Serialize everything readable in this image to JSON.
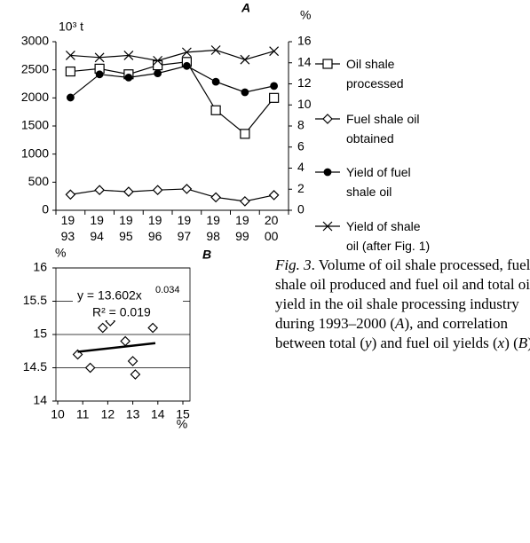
{
  "chart_data": [
    {
      "type": "line",
      "title": "A",
      "y_label": "10³ t",
      "y2_label": "%",
      "categories": [
        "1993",
        "1994",
        "1995",
        "1996",
        "1997",
        "1998",
        "1999",
        "2000"
      ],
      "series": [
        {
          "name": "Oil shale processed",
          "color": "#000000",
          "marker": "square",
          "axis": "y",
          "values": [
            2470,
            2520,
            2420,
            2580,
            2640,
            1780,
            1360,
            2000
          ]
        },
        {
          "name": "Fuel shale oil obtained",
          "color": "#000000",
          "marker": "diamond",
          "axis": "y",
          "values": [
            280,
            360,
            330,
            360,
            380,
            230,
            160,
            270
          ]
        },
        {
          "name": "Yield of fuel shale oil",
          "color": "#000000",
          "marker": "circle",
          "axis": "y2",
          "values": [
            10.7,
            12.9,
            12.6,
            13.0,
            13.7,
            12.2,
            11.2,
            11.8
          ]
        },
        {
          "name": "Yield of shale oil (after Fig. 1)",
          "color": "#000000",
          "marker": "x",
          "axis": "y2",
          "values": [
            14.7,
            14.5,
            14.7,
            14.2,
            15.0,
            15.2,
            14.3,
            15.1
          ]
        }
      ],
      "ylim": [
        0,
        3000
      ],
      "yticks": [
        0,
        500,
        1000,
        1500,
        2000,
        2500,
        3000
      ],
      "y2lim": [
        0,
        16
      ],
      "y2ticks": [
        0,
        2,
        4,
        6,
        8,
        10,
        12,
        14,
        16
      ],
      "grid": false
    },
    {
      "type": "scatter",
      "title": "B",
      "y_label": "%",
      "x_label": "%",
      "x": [
        10.8,
        11.3,
        11.8,
        12.1,
        12.7,
        13.0,
        13.1,
        13.8
      ],
      "y": [
        14.7,
        14.5,
        15.1,
        15.2,
        14.9,
        14.6,
        14.4,
        15.1
      ],
      "color": "#000000",
      "trendline": {
        "x": [
          10.8,
          13.9
        ],
        "y": [
          14.74,
          14.87
        ]
      },
      "equation": "y = 13.602x",
      "exponent": "0.034",
      "r2": "R² = 0.019",
      "xlim": [
        10,
        15
      ],
      "xticks": [
        10,
        11,
        12,
        13,
        14,
        15
      ],
      "ylim": [
        14,
        16
      ],
      "yticks": [
        14,
        14.5,
        15,
        15.5,
        16
      ],
      "grid": true
    }
  ],
  "caption": [
    {
      "text": "Fig. 3",
      "italic": true
    },
    {
      "text": ". Volume of oil shale processed, fuel shale oil produced and fuel oil and total oil yield in the oil shale processing industry during 1993–2000 (",
      "italic": false
    },
    {
      "text": "A",
      "italic": true
    },
    {
      "text": "), and correlation between total (",
      "italic": false
    },
    {
      "text": "y",
      "italic": true
    },
    {
      "text": ") and fuel oil yields (",
      "italic": false
    },
    {
      "text": "x",
      "italic": true
    },
    {
      "text": ") (",
      "italic": false
    },
    {
      "text": "B",
      "italic": true
    },
    {
      "text": ")",
      "italic": false
    }
  ]
}
